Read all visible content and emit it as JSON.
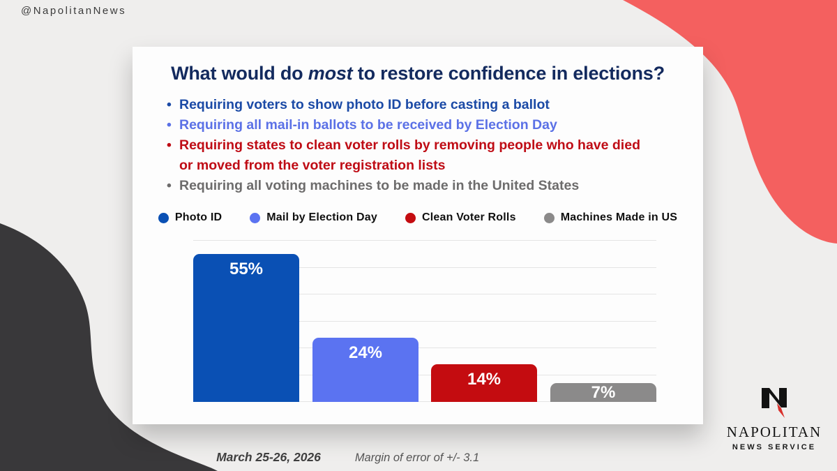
{
  "page": {
    "handle": "@NapolitanNews",
    "background_color": "#efeeed",
    "red_blob_color": "#f4605f",
    "dark_blob_color": "#39383a",
    "card_color": "#fdfdfd"
  },
  "card": {
    "title": {
      "prefix": "What would do ",
      "emphasis": "most",
      "suffix": " to restore confidence in elections?",
      "color": "#132a5e"
    },
    "bullets": [
      {
        "lines": [
          "Requiring voters to show photo ID before casting a ballot"
        ],
        "color": "#1b4aa6"
      },
      {
        "lines": [
          "Requiring all mail-in ballots to be received by Election Day"
        ],
        "color": "#5b71e6"
      },
      {
        "lines": [
          "Requiring states to clean voter rolls by removing people who have died",
          "or moved from the voter registration lists"
        ],
        "color": "#bf0c15"
      },
      {
        "lines": [
          "Requiring all voting machines to be made in the United States"
        ],
        "color": "#6d6c6c"
      }
    ]
  },
  "chart_data": {
    "type": "bar",
    "title": "What would do most to restore confidence in elections?",
    "categories": [
      "Photo ID",
      "Mail by Election Day",
      "Clean Voter Rolls",
      "Machines Made in US"
    ],
    "values": [
      55,
      24,
      14,
      7
    ],
    "data_labels": [
      "55%",
      "24%",
      "14%",
      "7%"
    ],
    "colors": [
      "#0a50b4",
      "#5b73f1",
      "#c40c10",
      "#8b8a8a"
    ],
    "xlabel": "",
    "ylabel": "",
    "ylim": [
      0,
      60
    ],
    "gridline_interval": 10,
    "grid": true,
    "legend_position": "top",
    "bar_label_color": "#ffffff"
  },
  "footer": {
    "date": "March 25-26, 2026",
    "margin_of_error": "Margin of error of +/- 3.1"
  },
  "logo": {
    "name": "NAPOLITAN",
    "subtitle": "NEWS SERVICE",
    "mark_black": "#121212",
    "mark_red": "#d9302c"
  }
}
